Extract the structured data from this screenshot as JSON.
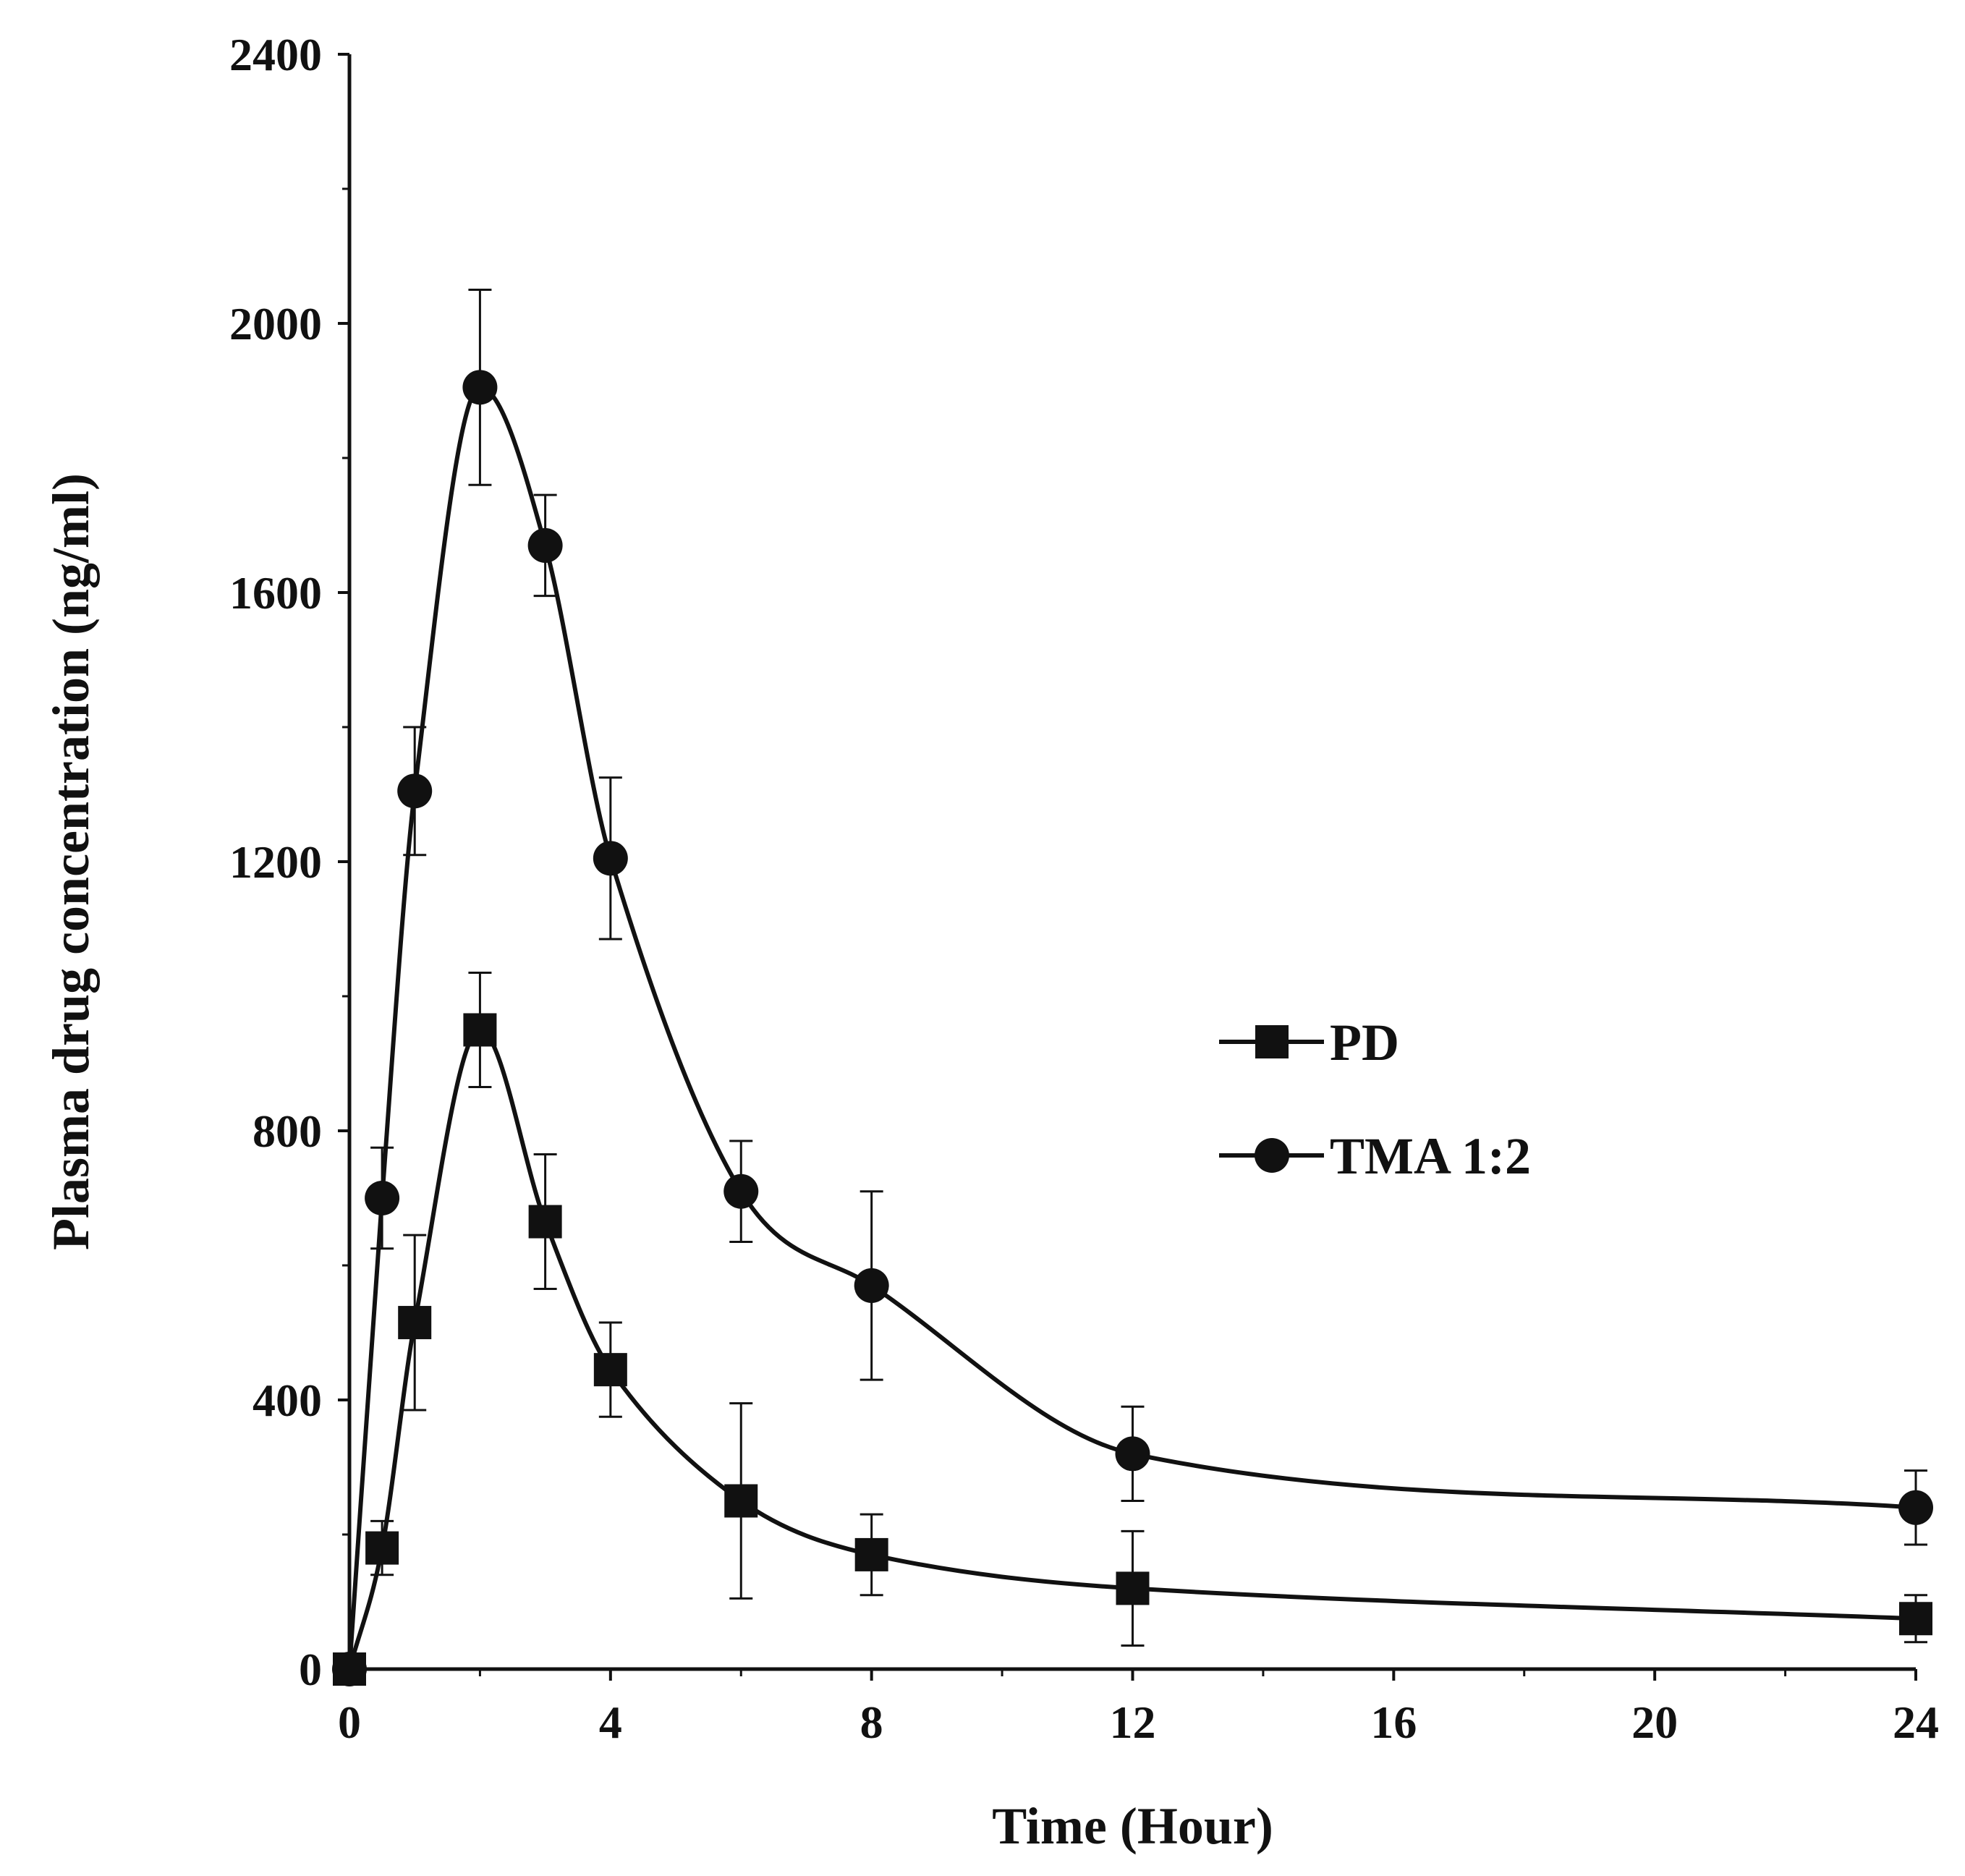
{
  "chart_data": {
    "type": "line",
    "title": "",
    "xlabel": "Time (Hour)",
    "ylabel": "Plasma drug concentration (ng/ml)",
    "xlim": [
      0,
      24
    ],
    "ylim": [
      0,
      2400
    ],
    "xticks": [
      0,
      4,
      8,
      12,
      16,
      20,
      24
    ],
    "xtick_labels": [
      "0",
      "4",
      "8",
      "12",
      "16",
      "20",
      "24"
    ],
    "yticks": [
      0,
      400,
      800,
      1200,
      1600,
      2000,
      2400
    ],
    "ytick_labels": [
      "0",
      "400",
      "800",
      "1200",
      "1600",
      "2000",
      "2400"
    ],
    "grid": false,
    "legend_position": "right-middle",
    "x": [
      0,
      0.5,
      1,
      2,
      3,
      4,
      6,
      8,
      12,
      24
    ],
    "series": [
      {
        "name": "PD",
        "marker": "square",
        "values": [
          0,
          180,
          515,
          950,
          665,
          445,
          250,
          170,
          120,
          75
        ],
        "errors": [
          0,
          40,
          130,
          85,
          100,
          70,
          145,
          60,
          85,
          35
        ]
      },
      {
        "name": "TMA 1:2",
        "marker": "circle",
        "values": [
          0,
          700,
          1305,
          1905,
          1670,
          1205,
          710,
          570,
          320,
          240
        ],
        "errors": [
          0,
          75,
          95,
          145,
          75,
          120,
          75,
          140,
          70,
          55
        ]
      }
    ]
  }
}
